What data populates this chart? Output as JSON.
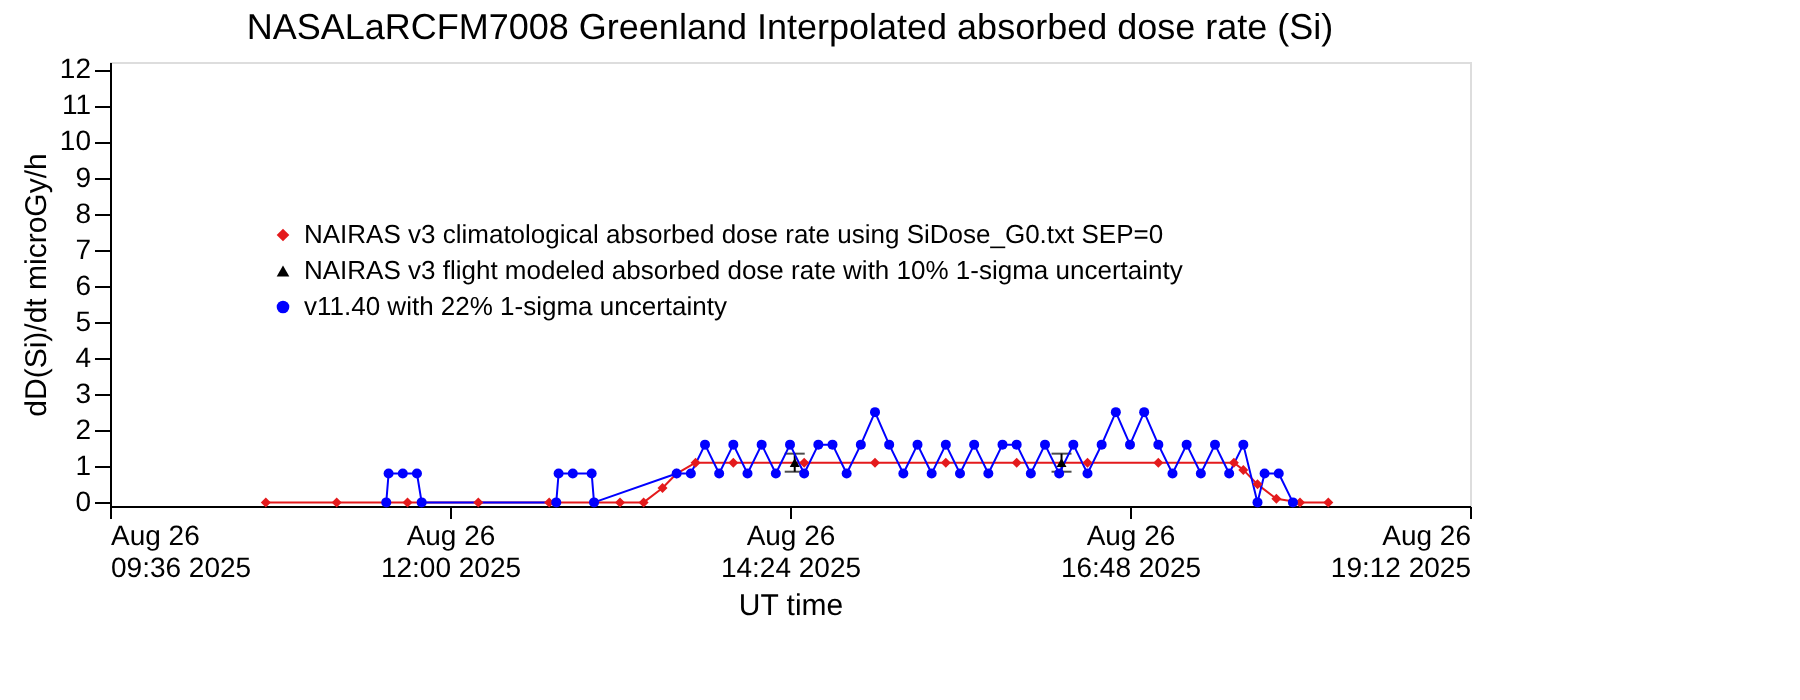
{
  "chart_data": {
    "type": "line",
    "title": "NASALaRCFM7008  Greenland Interpolated absorbed dose rate (Si)",
    "xlabel": "UT time",
    "ylabel": "dD(Si)/dt microGy/h",
    "xlim": [
      "2025-08-26T09:36",
      "2025-08-26T19:12"
    ],
    "xticks": [
      {
        "value": "2025-08-26T09:36",
        "label": "Aug 26\n09:36 2025"
      },
      {
        "value": "2025-08-26T12:00",
        "label": "Aug 26\n12:00 2025"
      },
      {
        "value": "2025-08-26T14:24",
        "label": "Aug 26\n14:24 2025"
      },
      {
        "value": "2025-08-26T16:48",
        "label": "Aug 26\n16:48 2025"
      },
      {
        "value": "2025-08-26T19:12",
        "label": "Aug 26\n19:12 2025"
      }
    ],
    "ylim": [
      -0.1,
      12.2
    ],
    "yticks": [
      0,
      1,
      2,
      3,
      4,
      5,
      6,
      7,
      8,
      9,
      10,
      11,
      12
    ],
    "grid": false,
    "legend": "top left",
    "series": [
      {
        "name": "NAIRAS v3 climatological absorbed dose rate using SiDose_G0.txt SEP=0",
        "marker": "diamond",
        "line_style": "solid",
        "color": "#e41a1c",
        "x": [
          "2025-08-26T10:42",
          "2025-08-26T11:12",
          "2025-08-26T11:42",
          "2025-08-26T12:12",
          "2025-08-26T12:42",
          "2025-08-26T13:12",
          "2025-08-26T13:22",
          "2025-08-26T13:30",
          "2025-08-26T13:36",
          "2025-08-26T13:44",
          "2025-08-26T14:00",
          "2025-08-26T14:30",
          "2025-08-26T15:00",
          "2025-08-26T15:30",
          "2025-08-26T16:00",
          "2025-08-26T16:30",
          "2025-08-26T17:00",
          "2025-08-26T17:32",
          "2025-08-26T17:36",
          "2025-08-26T17:42",
          "2025-08-26T17:50",
          "2025-08-26T18:00",
          "2025-08-26T18:12"
        ],
        "values": [
          0,
          0,
          0,
          0,
          0,
          0,
          0,
          0.4,
          0.8,
          1.1,
          1.1,
          1.1,
          1.1,
          1.1,
          1.1,
          1.1,
          1.1,
          1.1,
          0.9,
          0.5,
          0.1,
          0,
          0
        ]
      },
      {
        "name": "NAIRAS v3 flight modeled absorbed dose rate with 10% 1-sigma uncertainty",
        "type": "scatter",
        "marker": "triangle",
        "color": "#000000",
        "x": [
          "2025-08-26T14:26",
          "2025-08-26T16:19"
        ],
        "values": [
          1.1,
          1.1
        ],
        "errors": [
          0.25,
          0.25
        ]
      },
      {
        "name": "v11.40 with 22% 1-sigma uncertainty",
        "marker": "circle",
        "line_style": "solid",
        "color": "#0000ff",
        "x": [
          "2025-08-26T11:33",
          "2025-08-26T11:34",
          "2025-08-26T11:40",
          "2025-08-26T11:46",
          "2025-08-26T11:48",
          "2025-08-26T12:45",
          "2025-08-26T12:46",
          "2025-08-26T12:52",
          "2025-08-26T13:00",
          "2025-08-26T13:01",
          "2025-08-26T13:36",
          "2025-08-26T13:42",
          "2025-08-26T13:48",
          "2025-08-26T13:54",
          "2025-08-26T14:00",
          "2025-08-26T14:06",
          "2025-08-26T14:12",
          "2025-08-26T14:18",
          "2025-08-26T14:24",
          "2025-08-26T14:30",
          "2025-08-26T14:36",
          "2025-08-26T14:42",
          "2025-08-26T14:48",
          "2025-08-26T14:54",
          "2025-08-26T15:00",
          "2025-08-26T15:06",
          "2025-08-26T15:12",
          "2025-08-26T15:18",
          "2025-08-26T15:24",
          "2025-08-26T15:30",
          "2025-08-26T15:36",
          "2025-08-26T15:42",
          "2025-08-26T15:48",
          "2025-08-26T15:54",
          "2025-08-26T16:00",
          "2025-08-26T16:06",
          "2025-08-26T16:12",
          "2025-08-26T16:18",
          "2025-08-26T16:24",
          "2025-08-26T16:30",
          "2025-08-26T16:36",
          "2025-08-26T16:42",
          "2025-08-26T16:48",
          "2025-08-26T16:54",
          "2025-08-26T17:00",
          "2025-08-26T17:06",
          "2025-08-26T17:12",
          "2025-08-26T17:18",
          "2025-08-26T17:24",
          "2025-08-26T17:30",
          "2025-08-26T17:36",
          "2025-08-26T17:42",
          "2025-08-26T17:45",
          "2025-08-26T17:51",
          "2025-08-26T17:57"
        ],
        "values": [
          0,
          0.8,
          0.8,
          0.8,
          0,
          0,
          0.8,
          0.8,
          0.8,
          0,
          0.8,
          0.8,
          1.6,
          0.8,
          1.6,
          0.8,
          1.6,
          0.8,
          1.6,
          0.8,
          1.6,
          1.6,
          0.8,
          1.6,
          2.5,
          1.6,
          0.8,
          1.6,
          0.8,
          1.6,
          0.8,
          1.6,
          0.8,
          1.6,
          1.6,
          0.8,
          1.6,
          0.8,
          1.6,
          0.8,
          1.6,
          2.5,
          1.6,
          2.5,
          1.6,
          0.8,
          1.6,
          0.8,
          1.6,
          0.8,
          1.6,
          0,
          0.8,
          0.8,
          0
        ]
      }
    ]
  }
}
